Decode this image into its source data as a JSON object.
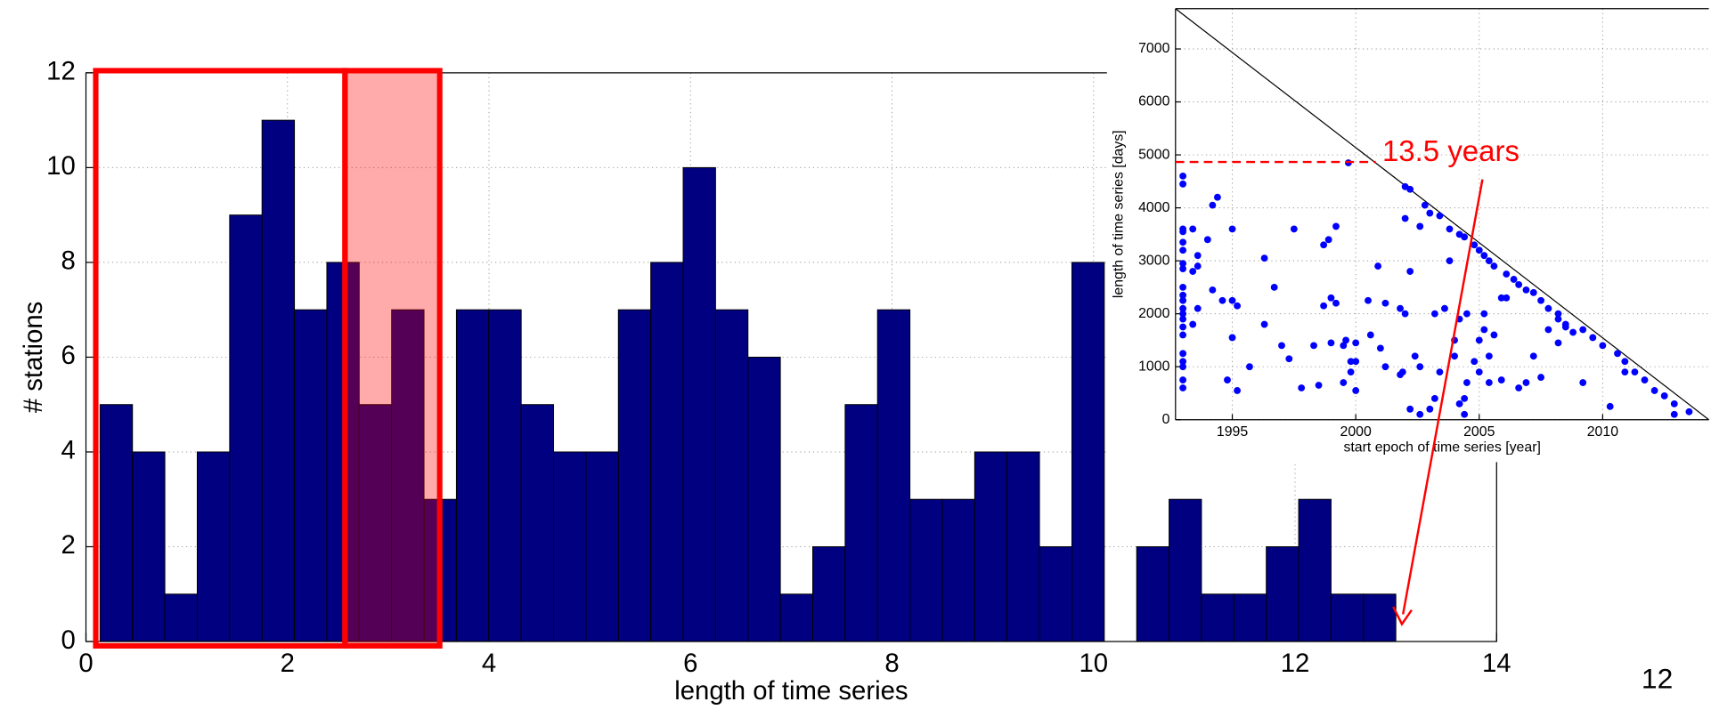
{
  "chart_data": [
    {
      "type": "histogram",
      "xlabel": "length of time series",
      "ylabel": "# stations",
      "bins": [
        0.14,
        0.4615,
        0.783,
        1.1045,
        1.426,
        1.7475,
        2.069,
        2.3905,
        2.712,
        3.0335,
        3.355,
        3.6765,
        3.998,
        4.3195,
        4.641,
        4.9625,
        5.284,
        5.6055,
        5.927,
        6.2485,
        6.57,
        6.8915,
        7.213,
        7.5345,
        7.856,
        8.1775,
        8.499,
        8.8205,
        9.142,
        9.4635,
        9.785,
        10.1065,
        10.428,
        10.7495,
        11.071,
        11.3925,
        11.714,
        12.0355,
        12.357,
        12.6785,
        13.0
      ],
      "values": [
        5,
        4,
        1,
        4,
        9,
        11,
        7,
        8,
        5,
        7,
        3,
        7,
        7,
        5,
        4,
        4,
        7,
        8,
        10,
        7,
        6,
        1,
        2,
        5,
        7,
        3,
        3,
        4,
        4,
        2,
        8,
        0,
        2,
        3,
        1,
        1,
        2,
        3,
        1,
        1
      ],
      "color": "#000080",
      "xlim": [
        0,
        14
      ],
      "ylim": [
        0,
        12
      ],
      "xticks": [
        0,
        2,
        4,
        6,
        8,
        10,
        12,
        14
      ],
      "yticks": [
        0,
        2,
        4,
        6,
        8,
        10,
        12
      ],
      "grid": true
    },
    {
      "type": "scatter",
      "xlabel": "start epoch of time series [year]",
      "ylabel": "length of time series [days]",
      "annotation": "13.5 years",
      "color": "#0000ff",
      "x": [
        1993.0,
        1993.0,
        1993.0,
        1993.0,
        1993.0,
        1993.0,
        1993.0,
        1993.0,
        1993.0,
        1993.0,
        1993.0,
        1993.0,
        1993.0,
        1993.0,
        1993.0,
        1993.0,
        1993.0,
        1993.0,
        1993.0,
        1993.0,
        1993.0,
        1993.4,
        1993.4,
        1993.4,
        1993.6,
        1993.6,
        1993.6,
        1994.0,
        1994.2,
        1994.2,
        1994.4,
        1994.6,
        1994.8,
        1995.0,
        1995.0,
        1995.0,
        1995.2,
        1995.2,
        1995.7,
        1996.3,
        1996.3,
        1996.7,
        1997.0,
        1997.3,
        1997.5,
        1997.8,
        1998.3,
        1998.5,
        1998.7,
        1998.7,
        1998.9,
        1999.0,
        1999.0,
        1999.2,
        1999.2,
        1999.5,
        1999.5,
        1999.6,
        1999.7,
        1999.8,
        1999.8,
        2000.0,
        2000.0,
        2000.0,
        2000.5,
        2000.6,
        2000.9,
        2001.0,
        2001.2,
        2001.2,
        2001.8,
        2001.8,
        2001.9,
        2002.0,
        2002.0,
        2002.0,
        2002.2,
        2002.2,
        2002.2,
        2002.4,
        2002.6,
        2002.6,
        2002.6,
        2002.8,
        2003.0,
        2003.0,
        2003.2,
        2003.2,
        2003.4,
        2003.4,
        2003.6,
        2003.8,
        2003.8,
        2004.0,
        2004.0,
        2004.2,
        2004.2,
        2004.2,
        2004.4,
        2004.4,
        2004.4,
        2004.5,
        2004.5,
        2004.8,
        2004.8,
        2005.0,
        2005.0,
        2005.0,
        2005.2,
        2005.2,
        2005.2,
        2005.4,
        2005.4,
        2005.4,
        2005.6,
        2005.6,
        2005.9,
        2005.9,
        2006.1,
        2006.1,
        2006.4,
        2006.6,
        2006.6,
        2006.9,
        2006.9,
        2007.2,
        2007.2,
        2007.5,
        2007.5,
        2007.8,
        2007.8,
        2008.2,
        2008.2,
        2008.2,
        2008.5,
        2008.5,
        2008.8,
        2009.2,
        2009.2,
        2009.6,
        2010.0,
        2010.3,
        2010.6,
        2010.9,
        2010.9,
        2011.3,
        2011.7,
        2012.1,
        2012.5,
        2012.9,
        2012.9,
        2013.5
      ],
      "values": [
        4600,
        4450,
        3600,
        3550,
        3350,
        3200,
        2950,
        2850,
        2500,
        2350,
        2250,
        2100,
        2000,
        1900,
        1750,
        1600,
        1250,
        1100,
        1000,
        750,
        600,
        3600,
        2800,
        1800,
        3100,
        2900,
        2100,
        3400,
        4050,
        2450,
        4200,
        2250,
        750,
        3600,
        2250,
        1550,
        550,
        2150,
        1000,
        3050,
        1800,
        2500,
        1400,
        1150,
        3600,
        600,
        1400,
        650,
        3300,
        2150,
        3400,
        2300,
        1450,
        3650,
        2200,
        1400,
        700,
        1500,
        4850,
        1100,
        900,
        1450,
        1100,
        550,
        2250,
        1600,
        2900,
        1350,
        2200,
        1000,
        2100,
        850,
        900,
        4400,
        3800,
        2000,
        4350,
        2800,
        200,
        1200,
        3650,
        1000,
        100,
        4050,
        3900,
        200,
        2000,
        400,
        3850,
        900,
        2100,
        3600,
        3000,
        1500,
        1200,
        3500,
        1900,
        300,
        3450,
        400,
        100,
        2000,
        700,
        3300,
        1100,
        3200,
        1500,
        900,
        3100,
        2000,
        1700,
        3000,
        1200,
        700,
        2900,
        1600,
        2300,
        750,
        2750,
        2300,
        2650,
        2550,
        600,
        2450,
        700,
        2400,
        1200,
        2250,
        800,
        2100,
        1700,
        2000,
        1450,
        1900,
        1750,
        1800,
        1650,
        1700,
        700,
        1550,
        1400,
        250,
        1250,
        1100,
        900,
        900,
        750,
        550,
        450,
        300,
        100,
        150
      ],
      "xlim": [
        1992.7,
        2014.3
      ],
      "ylim": [
        0,
        7760
      ],
      "xticks": [
        1995,
        2000,
        2005,
        2010
      ],
      "yticks": [
        0,
        1000,
        2000,
        3000,
        4000,
        5000,
        6000,
        7000
      ],
      "grid": true
    }
  ],
  "slide_number": "12"
}
